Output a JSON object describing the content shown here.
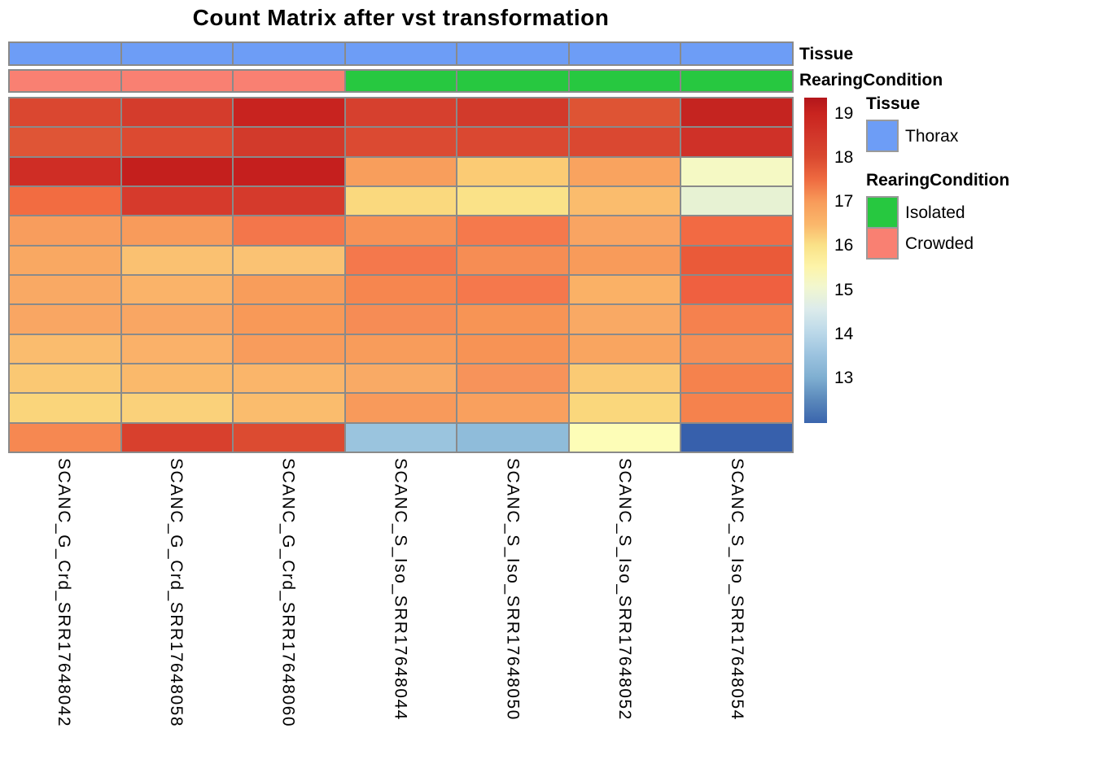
{
  "title": "Count Matrix after vst transformation",
  "row_annotation_labels": {
    "tissue": "Tissue",
    "rearing": "RearingCondition"
  },
  "legend": {
    "tissue_header": "Tissue",
    "tissue_items": [
      {
        "label": "Thorax",
        "color": "#6D9DF6"
      }
    ],
    "rearing_header": "RearingCondition",
    "rearing_items": [
      {
        "label": "Isolated",
        "color": "#27C840"
      },
      {
        "label": "Crowded",
        "color": "#F98072"
      }
    ]
  },
  "chart_data": {
    "type": "heatmap",
    "title": "Count Matrix after vst transformation",
    "columns": [
      "SCANC_G_Crd_SRR17648042",
      "SCANC_G_Crd_SRR17648058",
      "SCANC_G_Crd_SRR17648060",
      "SCANC_S_Iso_SRR17648044",
      "SCANC_S_Iso_SRR17648050",
      "SCANC_S_Iso_SRR17648052",
      "SCANC_S_Iso_SRR17648054"
    ],
    "n_rows": 12,
    "row_labels_shown": false,
    "column_annotations": {
      "Tissue": [
        "Thorax",
        "Thorax",
        "Thorax",
        "Thorax",
        "Thorax",
        "Thorax",
        "Thorax"
      ],
      "RearingCondition": [
        "Crowded",
        "Crowded",
        "Crowded",
        "Isolated",
        "Isolated",
        "Isolated",
        "Isolated"
      ]
    },
    "annotation_colors": {
      "Thorax": "#6D9DF6",
      "Isolated": "#27C840",
      "Crowded": "#F98072"
    },
    "values": [
      [
        18.8,
        18.9,
        19.2,
        18.9,
        19.0,
        18.7,
        19.2
      ],
      [
        18.65,
        18.8,
        19.0,
        18.8,
        18.8,
        18.8,
        19.1
      ],
      [
        19.1,
        19.3,
        19.3,
        17.5,
        16.65,
        17.45,
        15.1
      ],
      [
        18.35,
        19.0,
        19.0,
        16.25,
        16.0,
        16.9,
        14.85
      ],
      [
        17.55,
        17.6,
        18.2,
        17.8,
        18.15,
        17.4,
        18.35
      ],
      [
        17.35,
        16.8,
        16.75,
        18.2,
        17.9,
        17.6,
        18.55
      ],
      [
        17.3,
        17.1,
        17.55,
        18.0,
        18.15,
        17.15,
        18.5
      ],
      [
        17.4,
        17.4,
        17.6,
        17.9,
        17.8,
        17.3,
        18.05
      ],
      [
        16.9,
        17.15,
        17.55,
        17.6,
        17.8,
        17.4,
        17.85
      ],
      [
        16.6,
        17.0,
        17.05,
        17.3,
        17.8,
        16.6,
        18.0
      ],
      [
        16.35,
        16.4,
        16.9,
        17.6,
        17.5,
        16.3,
        18.0
      ],
      [
        17.95,
        18.9,
        18.8,
        13.9,
        13.7,
        15.5,
        12.35
      ]
    ],
    "cell_colors": [
      [
        "#DA4730",
        "#D43C2C",
        "#C8231F",
        "#D6402E",
        "#D23A2B",
        "#DE5434",
        "#C52420"
      ],
      [
        "#DF5536",
        "#DC4A31",
        "#D23A2B",
        "#DB4A32",
        "#DA4831",
        "#DA4831",
        "#CF3128"
      ],
      [
        "#CF2D25",
        "#C41F1D",
        "#C51F1E",
        "#F89E5C",
        "#FBCB74",
        "#F9A35F",
        "#F5F9C4"
      ],
      [
        "#F26C41",
        "#D63A2C",
        "#D53A2C",
        "#FAD97E",
        "#FAE288",
        "#FABC6D",
        "#E7F2D3"
      ],
      [
        "#F89D5D",
        "#F89B5B",
        "#F3764B",
        "#F79256",
        "#F5794C",
        "#F9A462",
        "#F26A43"
      ],
      [
        "#F9A862",
        "#FAC171",
        "#FAC273",
        "#F4784C",
        "#F68D54",
        "#F89B5A",
        "#EA5A39"
      ],
      [
        "#F9A964",
        "#FAB369",
        "#F89D5B",
        "#F6864F",
        "#F5784C",
        "#FAB166",
        "#EF6040"
      ],
      [
        "#F9A663",
        "#F9A663",
        "#F89958",
        "#F68C55",
        "#F79455",
        "#F9A964",
        "#F5814E"
      ],
      [
        "#FABC6E",
        "#FAB169",
        "#F89C5C",
        "#F89C5B",
        "#F79355",
        "#F9A560",
        "#F68F56"
      ],
      [
        "#FAC873",
        "#FAB96B",
        "#FAB56A",
        "#F9AA65",
        "#F7935A",
        "#FACA74",
        "#F5824D"
      ],
      [
        "#FAD57B",
        "#FAD17A",
        "#FABC6D",
        "#F89A5B",
        "#F9A05E",
        "#FAD77C",
        "#F5824D"
      ],
      [
        "#F68851",
        "#D8402D",
        "#DC4B31",
        "#9AC4DE",
        "#8FBCDA",
        "#FDFDB7",
        "#3760AC"
      ]
    ],
    "colorbar": {
      "ticks": [
        "19",
        "18",
        "17",
        "16",
        "15",
        "14",
        "13"
      ],
      "range": [
        12.0,
        19.35
      ],
      "gradient": [
        {
          "pos": 0,
          "color": "#B3161B"
        },
        {
          "pos": 5,
          "color": "#C9241F"
        },
        {
          "pos": 12,
          "color": "#D2372A"
        },
        {
          "pos": 18,
          "color": "#D9472F"
        },
        {
          "pos": 25,
          "color": "#EE6A40"
        },
        {
          "pos": 32,
          "color": "#F89B5A"
        },
        {
          "pos": 39,
          "color": "#FAB76B"
        },
        {
          "pos": 45.5,
          "color": "#FAE288"
        },
        {
          "pos": 52,
          "color": "#FDF4A9"
        },
        {
          "pos": 58,
          "color": "#F2F7CE"
        },
        {
          "pos": 65,
          "color": "#DCEBEB"
        },
        {
          "pos": 72,
          "color": "#BCD9E9"
        },
        {
          "pos": 79,
          "color": "#9CC3DF"
        },
        {
          "pos": 86,
          "color": "#7FAFD1"
        },
        {
          "pos": 93,
          "color": "#5A88BB"
        },
        {
          "pos": 100,
          "color": "#3A65AD"
        }
      ],
      "gridline_color": "#8A8A8A"
    },
    "legend_position": "right",
    "grid": true
  }
}
